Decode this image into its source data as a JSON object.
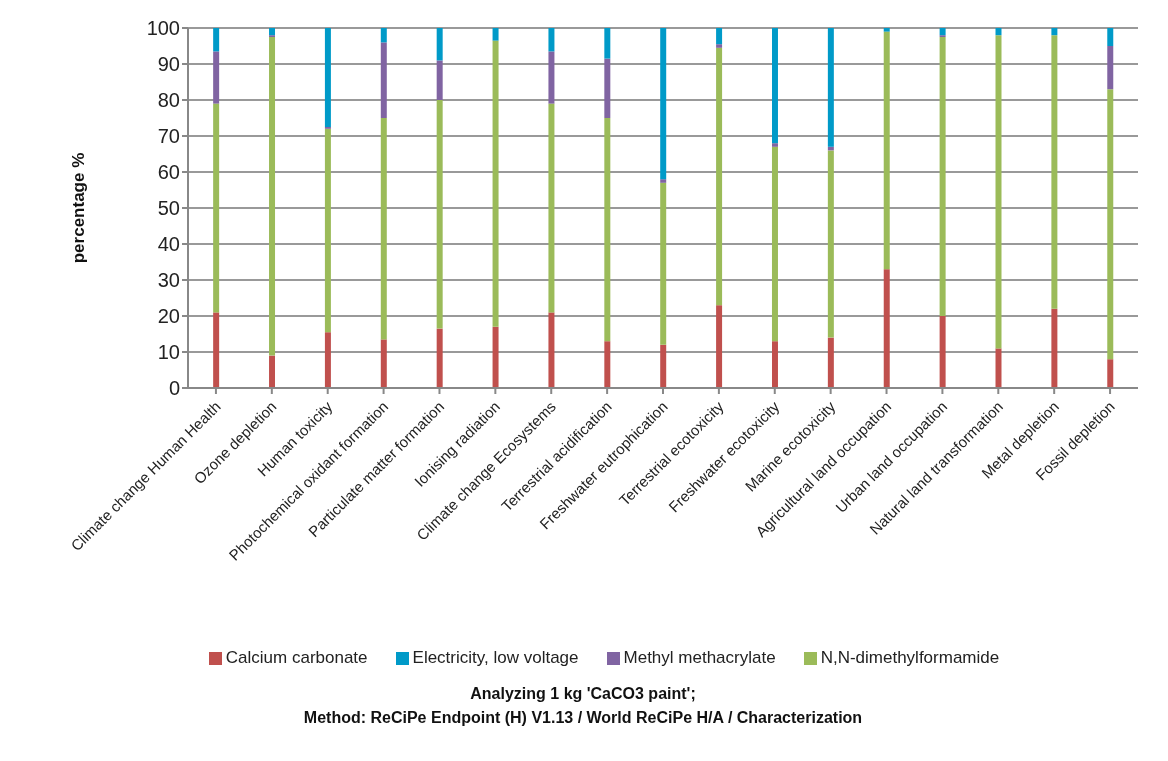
{
  "chart_data": {
    "type": "bar",
    "stacked": true,
    "title": "Analyzing 1 kg 'CaCO3 paint';",
    "subtitle": "Method: ReCiPe Endpoint (H) V1.13 / World ReCiPe H/A / Characterization",
    "ylabel": "percentage %",
    "categories": [
      "Climate change Human Health",
      "Ozone depletion",
      "Human toxicity",
      "Photochemical oxidant formation",
      "Particulate matter formation",
      "Ionising radiation",
      "Climate change Ecosystems",
      "Terrestrial acidification",
      "Freshwater eutrophication",
      "Terrestrial ecotoxicity",
      "Freshwater ecotoxicity",
      "Marine ecotoxicity",
      "Agricultural land occupation",
      "Urban land occupation",
      "Natural land transformation",
      "Metal depletion",
      "Fossil depletion"
    ],
    "series": [
      {
        "name": "Calcium carbonate",
        "color": "#c0504d",
        "values": [
          21,
          9,
          15.5,
          13.5,
          16.5,
          17,
          21,
          13,
          12,
          23,
          13,
          14,
          33,
          20,
          11,
          22,
          8
        ]
      },
      {
        "name": "N,N-dimethylformamide",
        "color": "#9bbb59",
        "values": [
          58,
          88.5,
          56.5,
          61.5,
          63.5,
          79.5,
          58,
          62,
          45,
          71.5,
          54,
          52,
          66,
          77.5,
          87,
          76,
          75
        ]
      },
      {
        "name": "Methyl methacrylate",
        "color": "#8064a2",
        "values": [
          14.5,
          0.5,
          0.5,
          21,
          11,
          0,
          14.5,
          16.5,
          1,
          1,
          1,
          1,
          0,
          0.5,
          0,
          0,
          12
        ]
      },
      {
        "name": "Electricity, low voltage",
        "color": "#009ac8",
        "values": [
          6.5,
          2,
          27.5,
          4,
          9,
          3.5,
          6.5,
          8.5,
          42,
          4.5,
          32,
          33,
          1,
          2,
          2,
          2,
          5
        ]
      }
    ],
    "ylim": [
      0,
      100
    ],
    "yticks": [
      0,
      10,
      20,
      30,
      40,
      50,
      60,
      70,
      80,
      90,
      100
    ],
    "grid": "y",
    "legend": "bottom"
  }
}
